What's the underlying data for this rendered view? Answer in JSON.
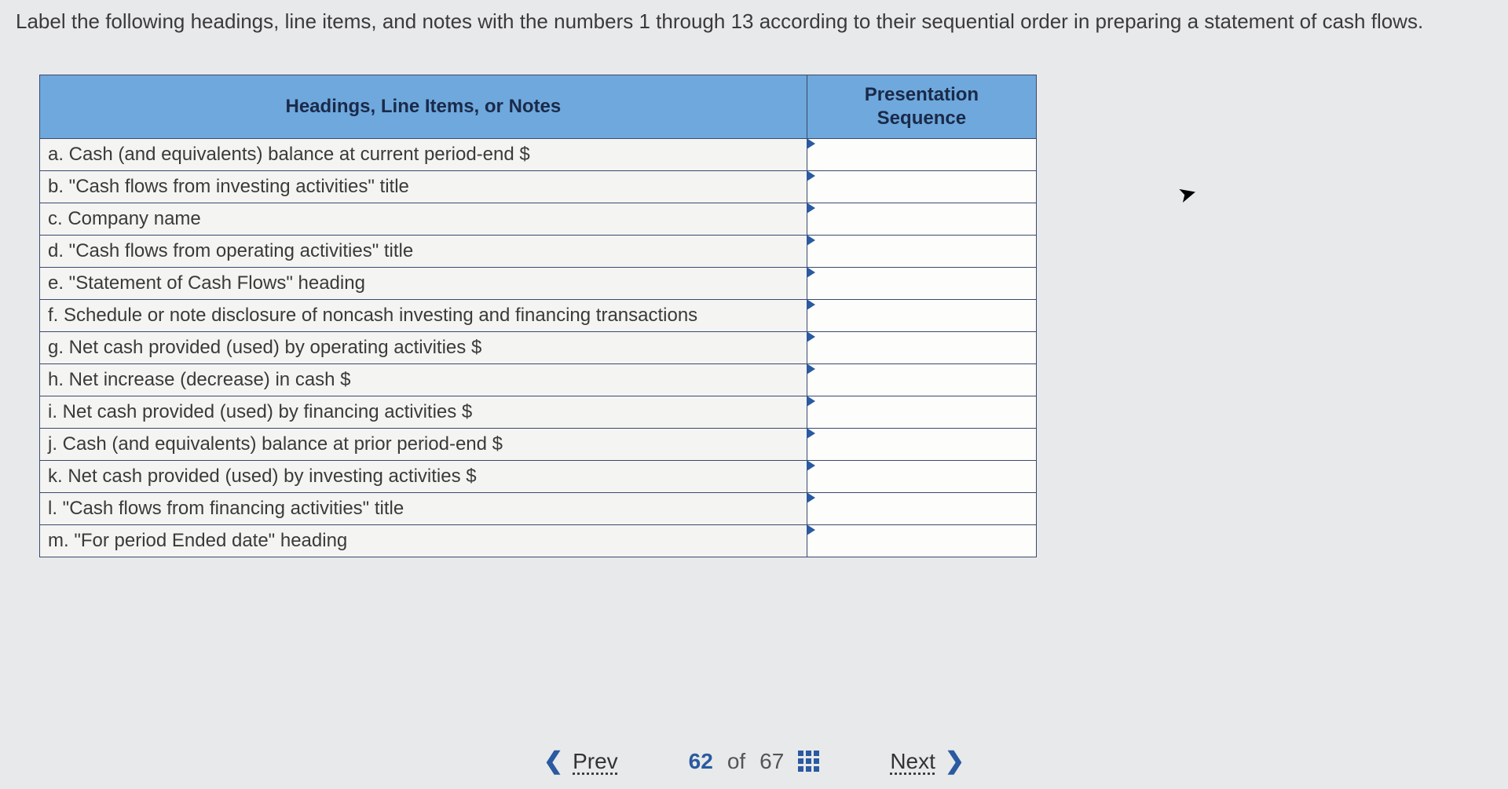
{
  "instruction": "Label the following headings, line items, and notes with the numbers 1 through 13 according to their sequential order in preparing a statement of cash flows.",
  "table": {
    "header_items": "Headings, Line Items, or Notes",
    "header_seq_line1": "Presentation",
    "header_seq_line2": "Sequence",
    "header_bg": "#6fa8dc",
    "border_color": "#394a6d",
    "rows": [
      {
        "label": "a. Cash (and equivalents) balance at current period-end $",
        "value": ""
      },
      {
        "label": "b. \"Cash flows from investing activities\" title",
        "value": ""
      },
      {
        "label": "c. Company name",
        "value": ""
      },
      {
        "label": "d. \"Cash flows from operating activities\" title",
        "value": ""
      },
      {
        "label": "e. \"Statement of Cash Flows\" heading",
        "value": ""
      },
      {
        "label": "f. Schedule or note disclosure of noncash investing and financing transactions",
        "value": ""
      },
      {
        "label": "g. Net cash provided (used) by operating activities $",
        "value": ""
      },
      {
        "label": "h. Net increase (decrease) in cash $",
        "value": ""
      },
      {
        "label": "i. Net cash provided (used) by financing activities $",
        "value": ""
      },
      {
        "label": "j. Cash (and equivalents) balance at prior period-end $",
        "value": ""
      },
      {
        "label": "k. Net cash provided (used) by investing activities $",
        "value": ""
      },
      {
        "label": "l. \"Cash flows from financing activities\" title",
        "value": ""
      },
      {
        "label": "m. \"For period Ended date\" heading",
        "value": ""
      }
    ]
  },
  "nav": {
    "prev_label": "Prev",
    "next_label": "Next",
    "current": "62",
    "of_word": "of",
    "total": "67"
  },
  "colors": {
    "page_bg": "#e8e9ea",
    "accent": "#2a5aa0"
  }
}
